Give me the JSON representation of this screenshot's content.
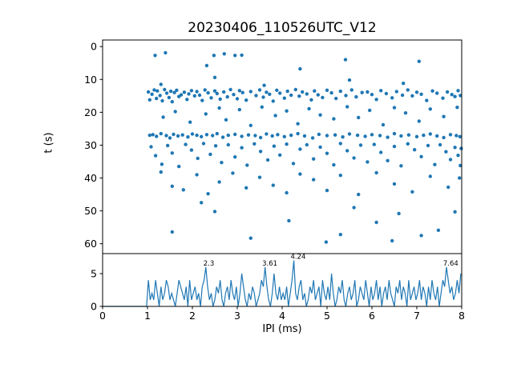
{
  "figure": {
    "background": "#ffffff",
    "axis_color": "#000000",
    "accent_color": "#1f77b4"
  },
  "chart_data": [
    {
      "type": "scatter",
      "title": "20230406_110526UTC_V12",
      "ylabel": "t (s)",
      "xlim": [
        0,
        8
      ],
      "ylim": [
        63,
        -2
      ],
      "y_inverted": true,
      "xticks": [
        0,
        1,
        2,
        3,
        4,
        5,
        6,
        7,
        8
      ],
      "yticks": [
        0,
        10,
        20,
        30,
        40,
        50,
        60
      ],
      "marker_color": "#1f77b4",
      "grid": false,
      "legend": "none",
      "points": [
        [
          1.17,
          2.7
        ],
        [
          1.4,
          1.9
        ],
        [
          2.48,
          2.7
        ],
        [
          2.71,
          2.2
        ],
        [
          2.95,
          2.7
        ],
        [
          3.1,
          2.6
        ],
        [
          5.41,
          4.0
        ],
        [
          7.05,
          4.5
        ],
        [
          2.32,
          5.8
        ],
        [
          2.5,
          9.4
        ],
        [
          4.4,
          6.8
        ],
        [
          5.5,
          10.2
        ],
        [
          1.3,
          11.5
        ],
        [
          3.6,
          11.8
        ],
        [
          6.7,
          11.2
        ],
        [
          1.02,
          13.8
        ],
        [
          1.05,
          16.2
        ],
        [
          1.1,
          14.5
        ],
        [
          1.15,
          13.2
        ],
        [
          1.2,
          15.8
        ],
        [
          1.22,
          13.5
        ],
        [
          1.28,
          14.9
        ],
        [
          1.33,
          16.5
        ],
        [
          1.38,
          13.1
        ],
        [
          1.43,
          14.2
        ],
        [
          1.48,
          15.5
        ],
        [
          1.52,
          13.6
        ],
        [
          1.55,
          16.8
        ],
        [
          1.6,
          14.0
        ],
        [
          1.65,
          13.3
        ],
        [
          1.7,
          15.2
        ],
        [
          1.75,
          14.7
        ],
        [
          1.82,
          13.9
        ],
        [
          1.88,
          16.1
        ],
        [
          1.92,
          14.4
        ],
        [
          1.98,
          13.4
        ],
        [
          2.05,
          15.0
        ],
        [
          2.1,
          13.7
        ],
        [
          2.16,
          14.8
        ],
        [
          2.22,
          16.4
        ],
        [
          2.28,
          13.2
        ],
        [
          2.35,
          14.1
        ],
        [
          2.42,
          15.6
        ],
        [
          2.5,
          13.5
        ],
        [
          2.55,
          14.3
        ],
        [
          2.62,
          16.0
        ],
        [
          2.7,
          13.8
        ],
        [
          2.78,
          15.3
        ],
        [
          2.85,
          13.1
        ],
        [
          2.92,
          14.6
        ],
        [
          3.0,
          15.9
        ],
        [
          3.05,
          13.4
        ],
        [
          3.12,
          14.0
        ],
        [
          3.2,
          16.3
        ],
        [
          3.3,
          13.7
        ],
        [
          3.42,
          14.9
        ],
        [
          3.5,
          13.2
        ],
        [
          3.58,
          15.4
        ],
        [
          3.65,
          13.9
        ],
        [
          3.72,
          14.5
        ],
        [
          3.8,
          16.6
        ],
        [
          3.88,
          13.3
        ],
        [
          3.95,
          14.2
        ],
        [
          4.05,
          15.7
        ],
        [
          4.12,
          13.6
        ],
        [
          4.2,
          14.8
        ],
        [
          4.3,
          13.1
        ],
        [
          4.38,
          15.1
        ],
        [
          4.45,
          13.8
        ],
        [
          4.55,
          14.4
        ],
        [
          4.65,
          16.2
        ],
        [
          4.72,
          13.5
        ],
        [
          4.8,
          14.7
        ],
        [
          4.9,
          15.5
        ],
        [
          5.0,
          13.3
        ],
        [
          5.1,
          14.1
        ],
        [
          5.2,
          15.8
        ],
        [
          5.3,
          13.6
        ],
        [
          5.42,
          14.9
        ],
        [
          5.55,
          13.2
        ],
        [
          5.65,
          15.3
        ],
        [
          5.78,
          14.0
        ],
        [
          5.9,
          13.8
        ],
        [
          6.0,
          14.6
        ],
        [
          6.1,
          16.1
        ],
        [
          6.2,
          13.4
        ],
        [
          6.32,
          14.3
        ],
        [
          6.45,
          15.6
        ],
        [
          6.55,
          13.7
        ],
        [
          6.68,
          14.8
        ],
        [
          6.8,
          13.2
        ],
        [
          6.9,
          15.0
        ],
        [
          7.0,
          13.9
        ],
        [
          7.1,
          14.5
        ],
        [
          7.22,
          16.4
        ],
        [
          7.35,
          13.5
        ],
        [
          7.45,
          14.2
        ],
        [
          7.58,
          15.7
        ],
        [
          7.68,
          13.8
        ],
        [
          7.78,
          14.6
        ],
        [
          7.85,
          15.2
        ],
        [
          7.92,
          13.4
        ],
        [
          7.97,
          14.9
        ],
        [
          1.35,
          21.5
        ],
        [
          1.62,
          19.8
        ],
        [
          1.95,
          23.0
        ],
        [
          2.3,
          20.5
        ],
        [
          2.6,
          18.7
        ],
        [
          2.75,
          22.3
        ],
        [
          3.05,
          19.2
        ],
        [
          3.3,
          24.0
        ],
        [
          3.55,
          18.4
        ],
        [
          3.85,
          21.0
        ],
        [
          4.1,
          19.6
        ],
        [
          4.35,
          23.5
        ],
        [
          4.6,
          18.9
        ],
        [
          4.85,
          20.8
        ],
        [
          5.15,
          22.0
        ],
        [
          5.45,
          18.3
        ],
        [
          5.7,
          21.6
        ],
        [
          5.95,
          19.4
        ],
        [
          6.25,
          23.8
        ],
        [
          6.5,
          18.6
        ],
        [
          6.75,
          20.2
        ],
        [
          7.05,
          22.7
        ],
        [
          7.3,
          19.0
        ],
        [
          7.6,
          21.3
        ],
        [
          7.9,
          18.5
        ],
        [
          1.05,
          27.0
        ],
        [
          1.12,
          26.8
        ],
        [
          1.2,
          27.3
        ],
        [
          1.3,
          26.5
        ],
        [
          1.42,
          27.1
        ],
        [
          1.5,
          27.8
        ],
        [
          1.58,
          26.7
        ],
        [
          1.68,
          27.2
        ],
        [
          1.78,
          26.9
        ],
        [
          1.9,
          27.5
        ],
        [
          2.0,
          26.6
        ],
        [
          2.1,
          27.0
        ],
        [
          2.2,
          27.4
        ],
        [
          2.32,
          26.8
        ],
        [
          2.45,
          27.1
        ],
        [
          2.55,
          26.5
        ],
        [
          2.68,
          27.6
        ],
        [
          2.8,
          27.0
        ],
        [
          2.95,
          26.7
        ],
        [
          3.1,
          27.3
        ],
        [
          3.25,
          26.9
        ],
        [
          3.4,
          27.1
        ],
        [
          3.52,
          27.7
        ],
        [
          3.65,
          26.6
        ],
        [
          3.78,
          27.2
        ],
        [
          3.9,
          26.8
        ],
        [
          4.05,
          27.4
        ],
        [
          4.2,
          27.0
        ],
        [
          4.35,
          26.5
        ],
        [
          4.5,
          27.2
        ],
        [
          4.68,
          27.8
        ],
        [
          4.82,
          26.7
        ],
        [
          5.0,
          27.1
        ],
        [
          5.18,
          26.9
        ],
        [
          5.35,
          27.5
        ],
        [
          5.5,
          26.6
        ],
        [
          5.68,
          27.0
        ],
        [
          5.85,
          27.3
        ],
        [
          6.0,
          26.8
        ],
        [
          6.18,
          27.1
        ],
        [
          6.35,
          27.6
        ],
        [
          6.5,
          26.5
        ],
        [
          6.65,
          27.2
        ],
        [
          6.82,
          26.9
        ],
        [
          7.0,
          27.4
        ],
        [
          7.15,
          27.0
        ],
        [
          7.3,
          26.6
        ],
        [
          7.45,
          27.2
        ],
        [
          7.6,
          27.7
        ],
        [
          7.75,
          26.8
        ],
        [
          7.88,
          27.1
        ],
        [
          7.96,
          27.4
        ],
        [
          1.08,
          30.5
        ],
        [
          1.18,
          33.2
        ],
        [
          1.32,
          35.8
        ],
        [
          1.45,
          30.1
        ],
        [
          1.55,
          32.4
        ],
        [
          1.7,
          36.5
        ],
        [
          1.85,
          29.8
        ],
        [
          1.98,
          31.5
        ],
        [
          2.12,
          34.0
        ],
        [
          2.25,
          29.5
        ],
        [
          2.4,
          32.8
        ],
        [
          2.52,
          30.2
        ],
        [
          2.65,
          35.3
        ],
        [
          2.8,
          29.9
        ],
        [
          2.95,
          33.6
        ],
        [
          3.1,
          30.8
        ],
        [
          3.22,
          36.1
        ],
        [
          3.38,
          29.6
        ],
        [
          3.52,
          31.9
        ],
        [
          3.68,
          34.5
        ],
        [
          3.82,
          30.3
        ],
        [
          3.95,
          33.0
        ],
        [
          4.1,
          29.7
        ],
        [
          4.25,
          35.6
        ],
        [
          4.4,
          31.2
        ],
        [
          4.55,
          29.9
        ],
        [
          4.7,
          34.2
        ],
        [
          4.85,
          30.6
        ],
        [
          5.0,
          32.5
        ],
        [
          5.15,
          36.0
        ],
        [
          5.3,
          29.5
        ],
        [
          5.45,
          31.7
        ],
        [
          5.6,
          33.9
        ],
        [
          5.75,
          30.0
        ],
        [
          5.9,
          35.1
        ],
        [
          6.05,
          29.8
        ],
        [
          6.2,
          32.2
        ],
        [
          6.35,
          34.7
        ],
        [
          6.5,
          30.4
        ],
        [
          6.65,
          36.3
        ],
        [
          6.8,
          29.6
        ],
        [
          6.95,
          31.4
        ],
        [
          7.1,
          33.5
        ],
        [
          7.25,
          30.1
        ],
        [
          7.4,
          35.9
        ],
        [
          7.52,
          29.9
        ],
        [
          7.65,
          32.0
        ],
        [
          7.75,
          34.4
        ],
        [
          7.85,
          30.7
        ],
        [
          7.92,
          33.1
        ],
        [
          7.97,
          36.2
        ],
        [
          7.99,
          31.0
        ],
        [
          1.3,
          38.2
        ],
        [
          1.55,
          42.5
        ],
        [
          1.8,
          43.6
        ],
        [
          2.1,
          39.0
        ],
        [
          2.35,
          44.8
        ],
        [
          2.6,
          41.2
        ],
        [
          2.9,
          38.5
        ],
        [
          3.2,
          43.0
        ],
        [
          3.5,
          39.8
        ],
        [
          3.8,
          42.2
        ],
        [
          4.1,
          44.5
        ],
        [
          4.4,
          38.8
        ],
        [
          4.7,
          40.5
        ],
        [
          5.0,
          43.8
        ],
        [
          5.3,
          39.2
        ],
        [
          5.7,
          45.0
        ],
        [
          6.1,
          38.4
        ],
        [
          6.5,
          41.8
        ],
        [
          6.9,
          44.2
        ],
        [
          7.3,
          39.5
        ],
        [
          7.7,
          42.8
        ],
        [
          7.95,
          40.0
        ],
        [
          1.55,
          56.4
        ],
        [
          2.5,
          50.2
        ],
        [
          3.3,
          58.3
        ],
        [
          2.2,
          47.5
        ],
        [
          4.15,
          53.0
        ],
        [
          4.98,
          59.5
        ],
        [
          5.3,
          57.2
        ],
        [
          5.6,
          49.0
        ],
        [
          6.45,
          59.1
        ],
        [
          6.6,
          50.8
        ],
        [
          7.48,
          55.9
        ],
        [
          7.1,
          57.5
        ],
        [
          6.1,
          53.5
        ],
        [
          7.85,
          50.3
        ]
      ]
    },
    {
      "type": "line",
      "xlabel": "IPI (ms)",
      "xlim": [
        0,
        8
      ],
      "ylim": [
        0,
        8.05
      ],
      "xticks": [
        0,
        1,
        2,
        3,
        4,
        5,
        6,
        7,
        8
      ],
      "yticks": [
        0,
        5
      ],
      "line_color": "#1f77b4",
      "grid": false,
      "legend": "none",
      "bin_start": 0,
      "bin_width": 0.04,
      "values": [
        0,
        0,
        0,
        0,
        0,
        0,
        0,
        0,
        0,
        0,
        0,
        0,
        0,
        0,
        0,
        0,
        0,
        0,
        0,
        0,
        0,
        0,
        0,
        0,
        0,
        4,
        1,
        2,
        1,
        4,
        2,
        0,
        3,
        1,
        2,
        4,
        3,
        1,
        2,
        1,
        0,
        2,
        4,
        3,
        2,
        1,
        3,
        0,
        4,
        1,
        2,
        3,
        1,
        2,
        0,
        3,
        4,
        6,
        3,
        1,
        2,
        0,
        1,
        3,
        2,
        4,
        1,
        0,
        2,
        3,
        1,
        4,
        2,
        1,
        3,
        0,
        2,
        5,
        3,
        1,
        0,
        2,
        1,
        3,
        2,
        0,
        1,
        2,
        4,
        3,
        6,
        3,
        1,
        0,
        2,
        5,
        2,
        1,
        3,
        1,
        2,
        1,
        3,
        0,
        2,
        4,
        7,
        2,
        1,
        3,
        4,
        1,
        2,
        0,
        1,
        3,
        2,
        4,
        1,
        2,
        3,
        0,
        4,
        2,
        1,
        3,
        1,
        5,
        2,
        0,
        1,
        3,
        2,
        4,
        1,
        0,
        2,
        3,
        1,
        2,
        4,
        0,
        1,
        3,
        2,
        1,
        4,
        2,
        0,
        3,
        1,
        2,
        4,
        1,
        3,
        0,
        2,
        3,
        1,
        4,
        2,
        1,
        0,
        3,
        2,
        4,
        1,
        3,
        2,
        0,
        4,
        1,
        2,
        3,
        1,
        2,
        4,
        1,
        3,
        2,
        0,
        3,
        1,
        4,
        2,
        1,
        3,
        0,
        2,
        4,
        3,
        6,
        4,
        2,
        3,
        1,
        2,
        4,
        2,
        5
      ],
      "annotations": [
        {
          "x": 2.3,
          "y": 6,
          "label": "2.3"
        },
        {
          "x": 3.61,
          "y": 6,
          "label": "3.61"
        },
        {
          "x": 4.24,
          "y": 7,
          "label": "4.24"
        },
        {
          "x": 7.64,
          "y": 6,
          "label": "7.64"
        }
      ]
    }
  ]
}
